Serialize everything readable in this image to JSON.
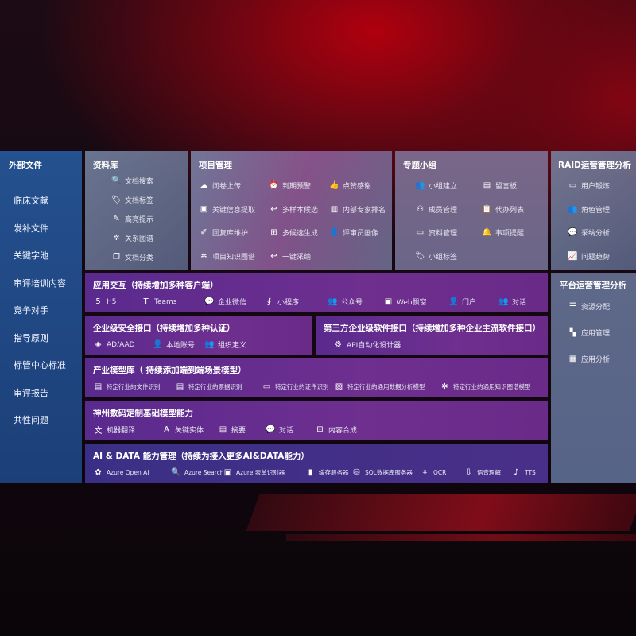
{
  "external": {
    "title": "外部文件",
    "items": [
      "临床文献",
      "发补文件",
      "关键字池",
      "审评培训内容",
      "竞争对手",
      "指导原则",
      "标管中心标准",
      "审评报告",
      "共性问题"
    ]
  },
  "library": {
    "title": "资料库",
    "items": [
      {
        "label": "文档搜索",
        "icon": "doc-search-icon"
      },
      {
        "label": "文档标签",
        "icon": "tag-icon"
      },
      {
        "label": "高亮提示",
        "icon": "pen-icon"
      },
      {
        "label": "关系图谱",
        "icon": "graph-icon"
      },
      {
        "label": "文档分类",
        "icon": "doc-stack-icon"
      }
    ]
  },
  "project": {
    "title": "项目管理",
    "items": [
      {
        "label": "问卷上传",
        "icon": "cloud-upload-icon"
      },
      {
        "label": "到期预警",
        "icon": "alarm-icon"
      },
      {
        "label": "点赞感谢",
        "icon": "thumbs-up-icon"
      },
      {
        "label": "关键信息提取",
        "icon": "window-icon"
      },
      {
        "label": "多样本候选",
        "icon": "reply-icon"
      },
      {
        "label": "内部专家排名",
        "icon": "ranking-icon"
      },
      {
        "label": "回复库维护",
        "icon": "edit-icon"
      },
      {
        "label": "多候选生成",
        "icon": "puzzle-icon"
      },
      {
        "label": "评审员画像",
        "icon": "person-icon"
      },
      {
        "label": "项目知识图谱",
        "icon": "graph-icon"
      },
      {
        "label": "一键采纳",
        "icon": "reply-icon"
      }
    ]
  },
  "group": {
    "title": "专题小组",
    "items": [
      {
        "label": "小组建立",
        "icon": "users-icon"
      },
      {
        "label": "留言板",
        "icon": "bbs-icon"
      },
      {
        "label": "成员管理",
        "icon": "user-add-icon"
      },
      {
        "label": "代办列表",
        "icon": "clipboard-icon"
      },
      {
        "label": "资料管理",
        "icon": "folder-icon"
      },
      {
        "label": "事项提醒",
        "icon": "bell-icon"
      },
      {
        "label": "小组标签",
        "icon": "tag-icon"
      }
    ]
  },
  "raid": {
    "title": "RAID运营管理分析",
    "items": [
      {
        "label": "用户锻炼",
        "icon": "id-card-icon"
      },
      {
        "label": "角色管理",
        "icon": "users-icon"
      },
      {
        "label": "采纳分析",
        "icon": "qa-icon"
      },
      {
        "label": "问题趋势",
        "icon": "trend-icon"
      }
    ]
  },
  "platform": {
    "title": "平台运营管理分析",
    "items": [
      {
        "label": "资源分配",
        "icon": "checklist-icon"
      },
      {
        "label": "应用管理",
        "icon": "apps-icon"
      },
      {
        "label": "应用分析",
        "icon": "analytics-icon"
      }
    ]
  },
  "app": {
    "title": "应用交互（持续增加多种客户端）",
    "items": [
      {
        "label": "H5",
        "icon": "html5-icon"
      },
      {
        "label": "Teams",
        "icon": "teams-icon"
      },
      {
        "label": "企业微信",
        "icon": "wecom-icon"
      },
      {
        "label": "小程序",
        "icon": "miniprogram-icon"
      },
      {
        "label": "公众号",
        "icon": "users-icon"
      },
      {
        "label": "Web飘窗",
        "icon": "window-icon"
      },
      {
        "label": "门户",
        "icon": "portal-icon"
      },
      {
        "label": "对话",
        "icon": "chat-people-icon"
      }
    ]
  },
  "security": {
    "title": "企业级安全接口（持续增加多种认证）",
    "items": [
      {
        "label": "AD/AAD",
        "icon": "ad-icon"
      },
      {
        "label": "本地账号",
        "icon": "person-icon"
      },
      {
        "label": "组织定义",
        "icon": "org-icon"
      }
    ]
  },
  "thirdparty": {
    "title": "第三方企业级软件接口（持续增加多种企业主流软件接口）",
    "items": [
      {
        "label": "API自动化设计器",
        "icon": "gear-icon"
      }
    ]
  },
  "industry": {
    "title": "产业模型库（ 持续添加端到端场景模型）",
    "items": [
      {
        "label": "特定行业的文件识别",
        "icon": "doc-icon"
      },
      {
        "label": "特定行业的票据识别",
        "icon": "receipt-icon"
      },
      {
        "label": "特定行业的证件识别",
        "icon": "id-card-icon"
      },
      {
        "label": "特定行业的通用数据分析模型",
        "icon": "chart-icon"
      },
      {
        "label": "特定行业的通用知识图谱模型",
        "icon": "graph-icon"
      }
    ]
  },
  "base": {
    "title": "神州数码定制基础模型能力",
    "items": [
      {
        "label": "机器翻译",
        "icon": "translate-icon"
      },
      {
        "label": "关键实体",
        "icon": "entity-icon"
      },
      {
        "label": "摘要",
        "icon": "doc-icon"
      },
      {
        "label": "对话",
        "icon": "chat-icon"
      },
      {
        "label": "内容合成",
        "icon": "puzzle-icon"
      }
    ]
  },
  "ai": {
    "title": "AI & DATA 能力管理（持续为接入更多AI&DATA能力）",
    "items": [
      {
        "label": "Azure Open AI",
        "icon": "openai-icon"
      },
      {
        "label": "Azure Search",
        "icon": "doc-search-icon"
      },
      {
        "label": "Azure 表单识别器",
        "icon": "form-icon"
      },
      {
        "label": "缓存服务器",
        "icon": "cache-icon"
      },
      {
        "label": "SQL数据库服务器",
        "icon": "database-icon"
      },
      {
        "label": "OCR",
        "icon": "ocr-icon"
      },
      {
        "label": "语音理解",
        "icon": "speech-icon"
      },
      {
        "label": "TTS",
        "icon": "tts-icon"
      }
    ]
  }
}
